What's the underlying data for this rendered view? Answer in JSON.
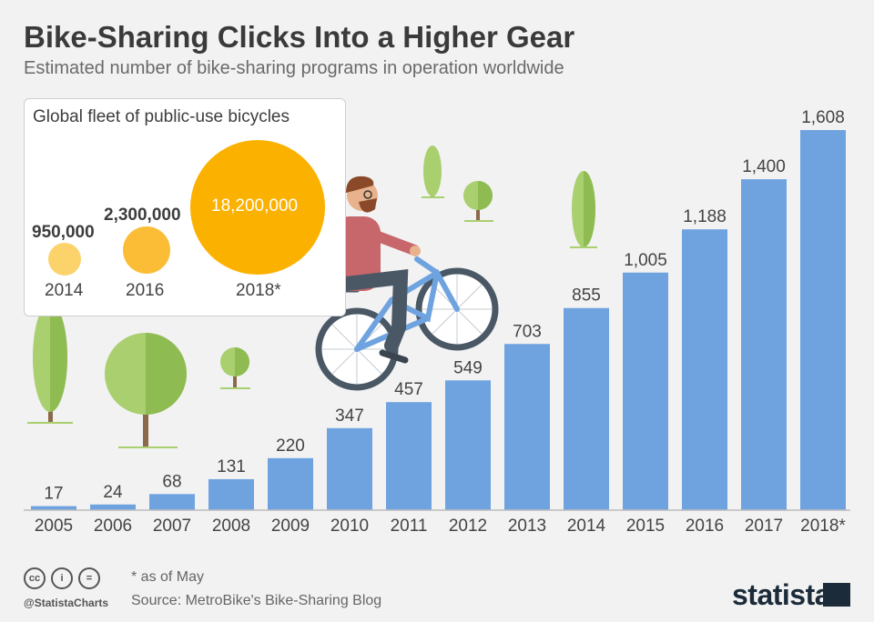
{
  "header": {
    "title": "Bike-Sharing Clicks Into a Higher Gear",
    "subtitle": "Estimated number of bike-sharing programs in operation worldwide"
  },
  "chart_data": {
    "type": "bar",
    "title": "Bike-Sharing Clicks Into a Higher Gear",
    "subtitle": "Estimated number of bike-sharing programs in operation worldwide",
    "categories": [
      "2005",
      "2006",
      "2007",
      "2008",
      "2009",
      "2010",
      "2011",
      "2012",
      "2013",
      "2014",
      "2015",
      "2016",
      "2017",
      "2018*"
    ],
    "values": [
      17,
      24,
      68,
      131,
      220,
      347,
      457,
      549,
      703,
      855,
      1005,
      1188,
      1400,
      1608
    ],
    "value_labels": [
      "17",
      "24",
      "68",
      "131",
      "220",
      "347",
      "457",
      "549",
      "703",
      "855",
      "1,005",
      "1,188",
      "1,400",
      "1,608"
    ],
    "xlabel": "",
    "ylabel": "",
    "ylim": [
      0,
      1608
    ],
    "grid": false,
    "bar_color": "#6fa3e0"
  },
  "inset": {
    "title": "Global fleet of public-use bicycles",
    "bubbles": [
      {
        "year": "2014",
        "value": 950000,
        "label": "950,000",
        "color": "#fcd36b"
      },
      {
        "year": "2016",
        "value": 2300000,
        "label": "2,300,000",
        "color": "#fbbd36"
      },
      {
        "year": "2018*",
        "value": 18200000,
        "label": "18,200,000",
        "color": "#fbb100"
      }
    ]
  },
  "footer": {
    "cc_icons": [
      "cc-icon",
      "by-icon",
      "equals-icon"
    ],
    "cc_glyphs": [
      "cc",
      "i",
      "="
    ],
    "handle": "@StatistaCharts",
    "note": "* as of May",
    "source": "Source: MetroBike's Bike-Sharing Blog",
    "brand": "statista"
  },
  "colors": {
    "background": "#f2f2f2",
    "bar": "#6fa3e0",
    "tree_light": "#a9cf6f",
    "tree_dark": "#8fbc52",
    "trunk": "#8a6a4a"
  }
}
